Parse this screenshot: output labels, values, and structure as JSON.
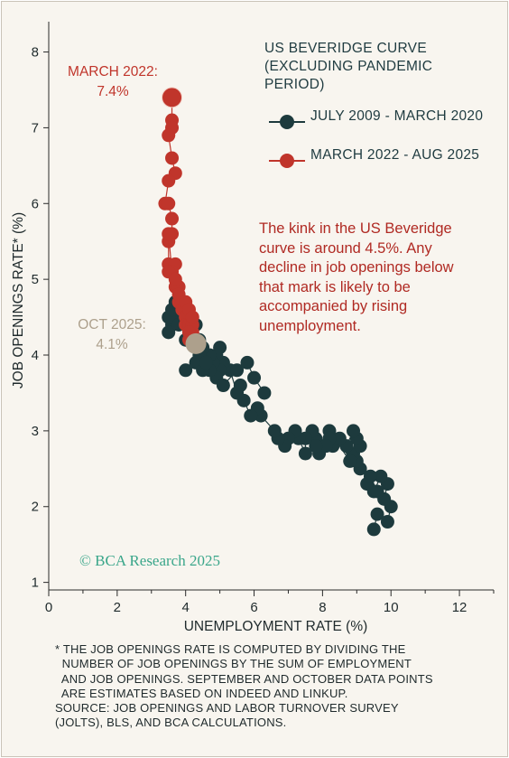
{
  "chart_data": {
    "type": "scatter",
    "title": "",
    "xlabel": "UNEMPLOYMENT RATE (%)",
    "ylabel": "JOB OPENINGS RATE* (%)",
    "xlim": [
      0,
      13
    ],
    "ylim": [
      0.9,
      8.4
    ],
    "xticks": [
      "0",
      "2",
      "4",
      "6",
      "8",
      "10",
      "12"
    ],
    "yticks": [
      "1",
      "2",
      "3",
      "4",
      "5",
      "6",
      "7",
      "8"
    ],
    "legend_title": "US BEVERIDGE CURVE (EXCLUDING PANDEMIC PERIOD)",
    "legend_position": "top-right",
    "series": [
      {
        "name": "JULY 2009 - MARCH 2020",
        "color": "#1d3a3d",
        "x": [
          9.5,
          9.6,
          9.9,
          10.0,
          9.8,
          9.9,
          9.7,
          9.5,
          9.3,
          9.4,
          9.6,
          9.1,
          9.0,
          8.9,
          9.1,
          9.0,
          8.9,
          8.7,
          8.3,
          8.5,
          8.8,
          8.2,
          8.0,
          7.8,
          7.9,
          8.2,
          8.1,
          7.8,
          7.7,
          7.5,
          7.5,
          7.3,
          7.2,
          7.0,
          6.9,
          6.7,
          6.6,
          6.2,
          6.1,
          5.9,
          5.7,
          5.6,
          5.5,
          5.3,
          5.1,
          5.0,
          5.0,
          4.9,
          4.9,
          4.8,
          4.7,
          4.7,
          4.5,
          4.4,
          4.3,
          4.1,
          4.0,
          4.0,
          3.9,
          3.8,
          3.7,
          3.6,
          3.6,
          3.5,
          3.5,
          3.6,
          3.8,
          3.9,
          4.4,
          4.0,
          4.3,
          4.5,
          4.6,
          5.1,
          5.5,
          5.8,
          6.0,
          6.3
        ],
        "y": [
          1.7,
          1.9,
          1.8,
          2.0,
          2.1,
          2.3,
          2.4,
          2.2,
          2.3,
          2.4,
          2.2,
          2.5,
          2.6,
          2.7,
          2.8,
          2.9,
          3.0,
          2.8,
          2.8,
          2.9,
          2.6,
          3.0,
          2.8,
          2.9,
          2.7,
          2.9,
          2.8,
          2.8,
          3.0,
          2.9,
          2.7,
          2.9,
          3.0,
          2.9,
          2.8,
          2.9,
          3.0,
          3.2,
          3.3,
          3.2,
          3.4,
          3.6,
          3.5,
          3.8,
          3.9,
          4.1,
          3.8,
          3.7,
          4.0,
          3.9,
          3.8,
          4.0,
          4.1,
          4.2,
          4.4,
          4.3,
          4.5,
          4.2,
          4.5,
          4.6,
          4.7,
          4.4,
          4.5,
          4.3,
          4.5,
          4.6,
          4.4,
          4.7,
          4.0,
          3.8,
          3.9,
          3.8,
          3.9,
          3.6,
          3.8,
          3.9,
          3.7,
          3.5
        ]
      },
      {
        "name": "MARCH 2022 - AUG 2025",
        "color": "#c0352b",
        "x": [
          3.6,
          3.6,
          3.6,
          3.5,
          3.6,
          3.7,
          3.5,
          3.4,
          3.5,
          3.6,
          3.6,
          3.5,
          3.5,
          3.7,
          3.6,
          3.5,
          3.5,
          3.7,
          3.8,
          3.7,
          3.8,
          3.8,
          3.9,
          3.9,
          4.0,
          4.0,
          4.1,
          4.0,
          4.1,
          4.2,
          4.2,
          4.2,
          4.1,
          4.1
        ],
        "y": [
          7.4,
          7.1,
          7.0,
          6.9,
          6.6,
          6.4,
          6.3,
          6.0,
          6.0,
          5.8,
          5.6,
          5.5,
          5.2,
          5.2,
          5.1,
          5.6,
          5.1,
          4.9,
          4.9,
          5.0,
          4.7,
          4.8,
          4.6,
          4.6,
          4.5,
          4.7,
          4.6,
          4.4,
          4.4,
          4.3,
          4.4,
          4.5,
          4.3,
          4.2
        ]
      }
    ],
    "highlights": [
      {
        "label": "MARCH 2022:",
        "value": "7.4%",
        "x": 3.6,
        "y": 7.4,
        "color": "#c0352b"
      },
      {
        "label": "OCT 2025:",
        "value": "4.1%",
        "x": 4.3,
        "y": 4.15,
        "color": "#ada08c"
      }
    ]
  },
  "annotation": "The kink in the US Beveridge curve is around 4.5%. Any decline in job openings below that mark is likely to be accompanied by rising unemployment.",
  "copyright": "© BCA Research 2025",
  "footnote": [
    "* THE JOB OPENINGS RATE IS COMPUTED BY DIVIDING THE",
    "  NUMBER OF JOB OPENINGS BY THE SUM OF EMPLOYMENT",
    "  AND JOB OPENINGS. SEPTEMBER AND OCTOBER DATA POINTS",
    "  ARE ESTIMATES BASED ON INDEED AND LINKUP.",
    "SOURCE: JOB OPENINGS AND LABOR TURNOVER SURVEY",
    "(JOLTS), BLS, AND BCA CALCULATIONS."
  ]
}
